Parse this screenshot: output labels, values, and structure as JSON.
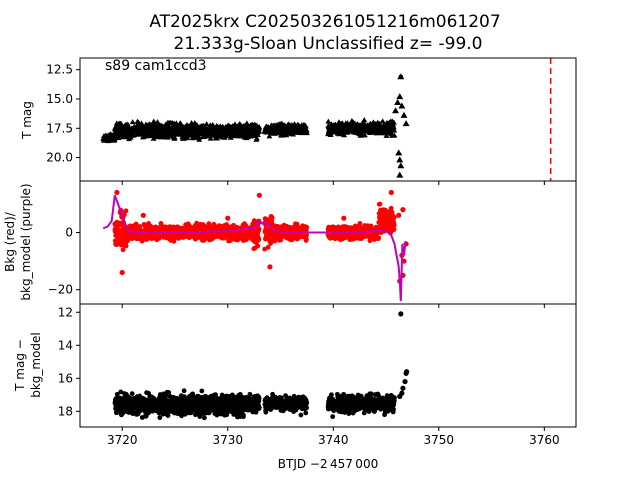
{
  "figure": {
    "title_line1": "AT2025krx  C202503261051216m061207",
    "title_line2": "21.333g-Sloan Unclassified z= -99.0",
    "xlabel": "BTJD −2 457 000",
    "annotation": "s89 cam1ccd3"
  },
  "colors": {
    "points": "#000000",
    "background_flux": "#ff0000",
    "background_model": "#bf00bf",
    "marker_line": "#ff0000",
    "axes": "#000000"
  },
  "chart_data": [
    {
      "type": "scatter",
      "panel": "top",
      "ylabel": "T mag",
      "y_inverted": true,
      "ylim": [
        22.0,
        11.5
      ],
      "xlim": [
        3716.0,
        3763.0
      ],
      "yticks": [
        12.5,
        15.0,
        17.5,
        20.0
      ],
      "ytick_labels": [
        "12.5",
        "15.0",
        "17.5",
        "20.0"
      ],
      "marker": "triangle-up",
      "segments": [
        {
          "x_start": 3718.2,
          "x_end": 3719.3,
          "center": 18.3,
          "spread": 0.4
        },
        {
          "x_start": 3719.3,
          "x_end": 3733.0,
          "center": 17.7,
          "spread": 0.9
        },
        {
          "x_start": 3733.5,
          "x_end": 3737.5,
          "center": 17.6,
          "spread": 0.7
        },
        {
          "x_start": 3739.5,
          "x_end": 3745.8,
          "center": 17.5,
          "spread": 0.8
        }
      ],
      "outliers": [
        {
          "x": 3746.4,
          "y": 13.1
        },
        {
          "x": 3745.9,
          "y": 16.0
        },
        {
          "x": 3746.1,
          "y": 15.3
        },
        {
          "x": 3746.3,
          "y": 14.8
        },
        {
          "x": 3746.5,
          "y": 15.6
        },
        {
          "x": 3746.7,
          "y": 16.4
        },
        {
          "x": 3746.2,
          "y": 19.6
        },
        {
          "x": 3746.3,
          "y": 20.2
        },
        {
          "x": 3746.4,
          "y": 20.7
        },
        {
          "x": 3746.3,
          "y": 21.5
        },
        {
          "x": 3746.9,
          "y": 17.1
        }
      ],
      "marker_line_x": 3760.6
    },
    {
      "type": "scatter",
      "panel": "middle",
      "ylabel_line1": "Bkg (red)/",
      "ylabel_line2": "bkg_model (purple)",
      "ylim": [
        -25.0,
        18.0
      ],
      "xlim": [
        3716.0,
        3763.0
      ],
      "yticks": [
        0,
        -20
      ],
      "ytick_labels": [
        "0",
        "−20"
      ],
      "series": [
        {
          "name": "Bkg (red)",
          "points_described": [
            {
              "x": 3719.5,
              "y": 14.0
            },
            {
              "x": 3720.0,
              "y": -14.0
            },
            {
              "x": 3722.0,
              "y": 6.0
            },
            {
              "x": 3730.0,
              "y": 5.0
            },
            {
              "x": 3733.0,
              "y": 13.0
            },
            {
              "x": 3734.0,
              "y": -12.0
            },
            {
              "x": 3741.0,
              "y": 5.0
            },
            {
              "x": 3745.5,
              "y": 14.0
            },
            {
              "x": 3746.6,
              "y": -15.0
            }
          ]
        },
        {
          "name": "bkg_model (purple)",
          "x": [
            3718.2,
            3718.6,
            3719.0,
            3719.3,
            3719.6,
            3720.0,
            3720.4,
            3720.8,
            3722.0,
            3726.0,
            3730.0,
            3732.5,
            3733.0,
            3733.3,
            3733.6,
            3734.0,
            3734.5,
            3735.5,
            3737.5,
            3739.5,
            3742.0,
            3744.0,
            3745.0,
            3745.5,
            3745.8,
            3746.0,
            3746.2,
            3746.3,
            3746.4,
            3746.55,
            3746.7,
            3746.85
          ],
          "y": [
            1.5,
            2.0,
            4.0,
            13.0,
            10.0,
            6.0,
            2.0,
            0.0,
            0.0,
            0.0,
            0.5,
            1.5,
            4.0,
            3.0,
            3.5,
            2.0,
            0.5,
            0.0,
            0.0,
            0.0,
            0.0,
            0.5,
            0.5,
            -1.0,
            -4.0,
            -8.0,
            -12.0,
            -17.0,
            -24.0,
            -4.0,
            -8.0,
            -3.0
          ]
        }
      ]
    },
    {
      "type": "scatter",
      "panel": "bottom",
      "ylabel_line1": "T mag −",
      "ylabel_line2": "bkg_model",
      "y_inverted": true,
      "ylim": [
        18.95,
        11.5
      ],
      "xlim": [
        3716.0,
        3763.0
      ],
      "yticks": [
        12,
        14,
        16,
        18
      ],
      "ytick_labels": [
        "12",
        "14",
        "16",
        "18"
      ],
      "xticks": [
        3720,
        3730,
        3740,
        3750,
        3760
      ],
      "xtick_labels": [
        "3720",
        "3730",
        "3740",
        "3750",
        "3760"
      ],
      "segments": [
        {
          "x_start": 3719.3,
          "x_end": 3733.0,
          "center": 17.6,
          "spread": 0.9
        },
        {
          "x_start": 3733.5,
          "x_end": 3737.5,
          "center": 17.55,
          "spread": 0.7
        },
        {
          "x_start": 3739.5,
          "x_end": 3745.8,
          "center": 17.55,
          "spread": 0.8
        }
      ],
      "outliers": [
        {
          "x": 3746.4,
          "y": 12.1
        },
        {
          "x": 3746.6,
          "y": 16.6
        },
        {
          "x": 3746.8,
          "y": 16.2
        },
        {
          "x": 3746.9,
          "y": 15.7
        },
        {
          "x": 3746.95,
          "y": 15.6
        },
        {
          "x": 3746.5,
          "y": 16.9
        },
        {
          "x": 3746.3,
          "y": 17.1
        }
      ]
    }
  ]
}
